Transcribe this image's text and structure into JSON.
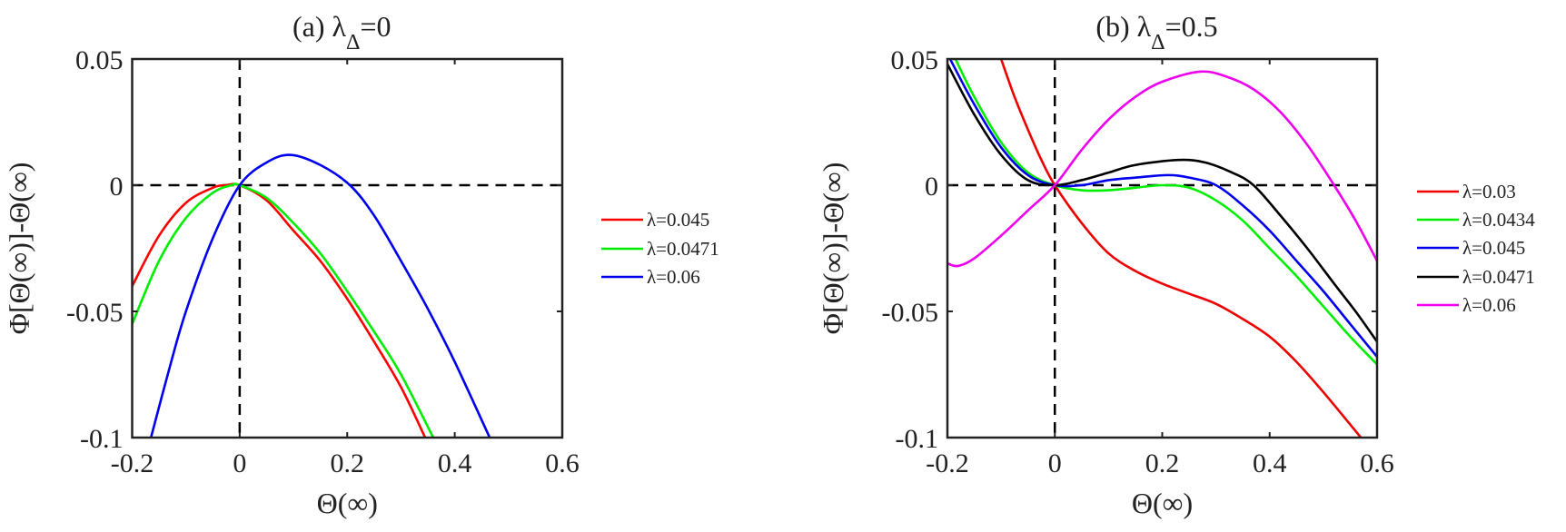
{
  "chart_data": [
    {
      "type": "line",
      "title": "(a) λ_Δ=0",
      "title_main": "(a) λ",
      "title_sub": "Δ",
      "title_tail": "=0",
      "xlabel": "Θ(∞)",
      "ylabel": "Φ[Θ(∞)]-Θ(∞)",
      "xlim": [
        -0.2,
        0.6
      ],
      "ylim": [
        -0.1,
        0.05
      ],
      "xticks": [
        -0.2,
        0,
        0.2,
        0.4,
        0.6
      ],
      "xtick_labels": [
        "-0.2",
        "0",
        "0.2",
        "0.4",
        "0.6"
      ],
      "yticks": [
        -0.1,
        -0.05,
        0,
        0.05
      ],
      "ytick_labels": [
        "-0.1",
        "-0.05",
        "0",
        "0.05"
      ],
      "grid": false,
      "legend_position": "outside-right",
      "reference_lines": {
        "x": 0,
        "y": 0
      },
      "series": [
        {
          "name": "λ=0.045",
          "color": "#ff0000",
          "x": [
            -0.2,
            -0.15,
            -0.1,
            -0.05,
            -0.025,
            0,
            0.05,
            0.1,
            0.15,
            0.2,
            0.25,
            0.3,
            0.345
          ],
          "y": [
            -0.04,
            -0.02,
            -0.007,
            -0.001,
            0,
            0,
            -0.006,
            -0.018,
            -0.03,
            -0.045,
            -0.062,
            -0.08,
            -0.1
          ]
        },
        {
          "name": "λ=0.0471",
          "color": "#00ee00",
          "x": [
            -0.2,
            -0.15,
            -0.1,
            -0.05,
            -0.015,
            0,
            0.05,
            0.1,
            0.15,
            0.2,
            0.25,
            0.3,
            0.36
          ],
          "y": [
            -0.055,
            -0.03,
            -0.013,
            -0.003,
            0,
            0,
            -0.005,
            -0.015,
            -0.027,
            -0.042,
            -0.058,
            -0.075,
            -0.1
          ]
        },
        {
          "name": "λ=0.06",
          "color": "#0000ee",
          "x": [
            -0.165,
            -0.13,
            -0.1,
            -0.05,
            0,
            0.05,
            0.095,
            0.15,
            0.205,
            0.25,
            0.3,
            0.35,
            0.4,
            0.465
          ],
          "y": [
            -0.1,
            -0.072,
            -0.05,
            -0.021,
            0,
            0.009,
            0.012,
            0.008,
            0,
            -0.012,
            -0.03,
            -0.049,
            -0.07,
            -0.1
          ]
        }
      ]
    },
    {
      "type": "line",
      "title": "(b) λ_Δ=0.5",
      "title_main": "(b) λ",
      "title_sub": "Δ",
      "title_tail": "=0.5",
      "xlabel": "Θ(∞)",
      "ylabel": "Φ[Θ(∞)]-Θ(∞)",
      "xlim": [
        -0.2,
        0.6
      ],
      "ylim": [
        -0.1,
        0.05
      ],
      "xticks": [
        -0.2,
        0,
        0.2,
        0.4,
        0.6
      ],
      "xtick_labels": [
        "-0.2",
        "0",
        "0.2",
        "0.4",
        "0.6"
      ],
      "yticks": [
        -0.1,
        -0.05,
        0,
        0.05
      ],
      "ytick_labels": [
        "-0.1",
        "-0.05",
        "0",
        "0.05"
      ],
      "grid": false,
      "legend_position": "outside-right",
      "reference_lines": {
        "x": 0,
        "y": 0
      },
      "series": [
        {
          "name": "λ=0.03",
          "color": "#ee0000",
          "x": [
            -0.1,
            -0.075,
            -0.05,
            -0.025,
            0,
            0.05,
            0.1,
            0.15,
            0.2,
            0.25,
            0.3,
            0.35,
            0.4,
            0.45,
            0.5,
            0.57
          ],
          "y": [
            0.05,
            0.035,
            0.022,
            0.01,
            0,
            -0.015,
            -0.027,
            -0.034,
            -0.039,
            -0.043,
            -0.047,
            -0.053,
            -0.06,
            -0.07,
            -0.082,
            -0.1
          ]
        },
        {
          "name": "λ=0.0434",
          "color": "#00ee00",
          "x": [
            -0.185,
            -0.15,
            -0.1,
            -0.05,
            0,
            0.05,
            0.1,
            0.15,
            0.2,
            0.25,
            0.3,
            0.35,
            0.4,
            0.45,
            0.5,
            0.55,
            0.6
          ],
          "y": [
            0.05,
            0.035,
            0.017,
            0.005,
            0,
            -0.002,
            -0.002,
            -0.001,
            0,
            -0.001,
            -0.006,
            -0.014,
            -0.025,
            -0.036,
            -0.048,
            -0.06,
            -0.071
          ]
        },
        {
          "name": "λ=0.045",
          "color": "#0000ee",
          "x": [
            -0.195,
            -0.15,
            -0.1,
            -0.05,
            0,
            0.05,
            0.1,
            0.15,
            0.21,
            0.25,
            0.3,
            0.35,
            0.4,
            0.45,
            0.5,
            0.55,
            0.6
          ],
          "y": [
            0.05,
            0.032,
            0.015,
            0.004,
            0,
            0,
            0.002,
            0.003,
            0.004,
            0.003,
            0,
            -0.008,
            -0.018,
            -0.03,
            -0.042,
            -0.055,
            -0.068
          ]
        },
        {
          "name": "λ=0.0471",
          "color": "#000000",
          "x": [
            -0.2,
            -0.15,
            -0.1,
            -0.05,
            0,
            0.05,
            0.1,
            0.15,
            0.23,
            0.28,
            0.33,
            0.37,
            0.42,
            0.47,
            0.52,
            0.56,
            0.6
          ],
          "y": [
            0.048,
            0.028,
            0.012,
            0.002,
            0,
            0.002,
            0.005,
            0.008,
            0.01,
            0.009,
            0.005,
            0,
            -0.012,
            -0.025,
            -0.039,
            -0.05,
            -0.062
          ]
        },
        {
          "name": "λ=0.06",
          "color": "#ee00ee",
          "x": [
            -0.2,
            -0.18,
            -0.15,
            -0.1,
            -0.05,
            0,
            0.05,
            0.1,
            0.15,
            0.2,
            0.27,
            0.32,
            0.37,
            0.42,
            0.47,
            0.52,
            0.56,
            0.6
          ],
          "y": [
            -0.031,
            -0.032,
            -0.029,
            -0.02,
            -0.01,
            0,
            0.014,
            0.026,
            0.035,
            0.041,
            0.045,
            0.043,
            0.038,
            0.029,
            0.016,
            0,
            -0.014,
            -0.03
          ]
        }
      ]
    }
  ]
}
